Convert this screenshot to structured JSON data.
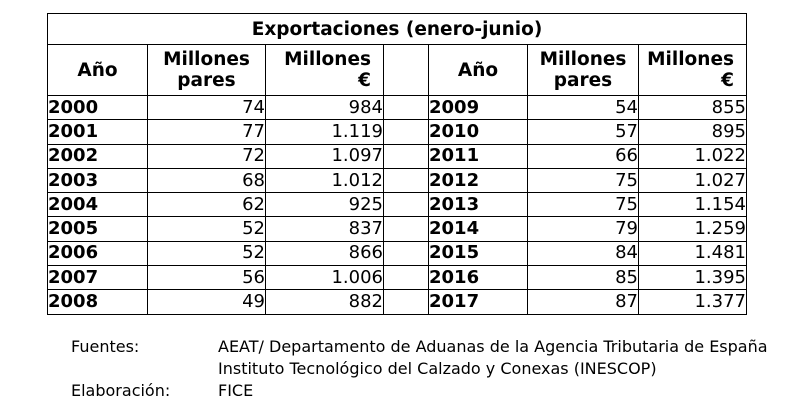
{
  "table": {
    "title": "Exportaciones (enero-junio)",
    "headers": {
      "year": "Año",
      "pairs_line1": "Millones",
      "pairs_line2": "pares",
      "euros_line1": "Millones",
      "euros_line2": "€"
    },
    "rows": [
      {
        "year_a": "2000",
        "pairs_a": "74",
        "euros_a": "984",
        "year_b": "2009",
        "pairs_b": "54",
        "euros_b": "855"
      },
      {
        "year_a": "2001",
        "pairs_a": "77",
        "euros_a": "1.119",
        "year_b": "2010",
        "pairs_b": "57",
        "euros_b": "895"
      },
      {
        "year_a": "2002",
        "pairs_a": "72",
        "euros_a": "1.097",
        "year_b": "2011",
        "pairs_b": "66",
        "euros_b": "1.022"
      },
      {
        "year_a": "2003",
        "pairs_a": "68",
        "euros_a": "1.012",
        "year_b": "2012",
        "pairs_b": "75",
        "euros_b": "1.027"
      },
      {
        "year_a": "2004",
        "pairs_a": "62",
        "euros_a": "925",
        "year_b": "2013",
        "pairs_b": "75",
        "euros_b": "1.154"
      },
      {
        "year_a": "2005",
        "pairs_a": "52",
        "euros_a": "837",
        "year_b": "2014",
        "pairs_b": "79",
        "euros_b": "1.259"
      },
      {
        "year_a": "2006",
        "pairs_a": "52",
        "euros_a": "866",
        "year_b": "2015",
        "pairs_b": "84",
        "euros_b": "1.481"
      },
      {
        "year_a": "2007",
        "pairs_a": "56",
        "euros_a": "1.006",
        "year_b": "2016",
        "pairs_b": "85",
        "euros_b": "1.395"
      },
      {
        "year_a": "2008",
        "pairs_a": "49",
        "euros_a": "882",
        "year_b": "2017",
        "pairs_b": "87",
        "euros_b": "1.377"
      }
    ]
  },
  "footer": {
    "sources_label": "Fuentes:",
    "source_1": "AEAT/ Departamento de Aduanas de la Agencia Tributaria de España",
    "source_2": "Instituto Tecnológico del Calzado y Conexas (INESCOP)",
    "elaboration_label": "Elaboración:",
    "elaboration_value": "FICE"
  }
}
